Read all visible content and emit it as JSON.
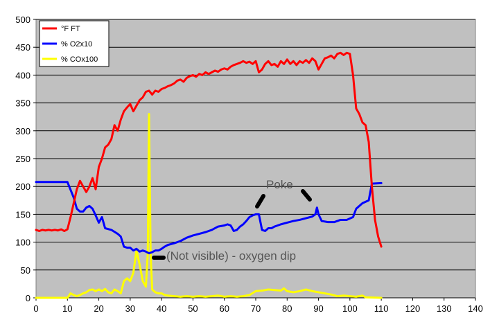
{
  "chart_data": {
    "type": "line",
    "title": "",
    "xlabel": "",
    "ylabel": "",
    "xlim": [
      0,
      140
    ],
    "ylim": [
      0,
      500
    ],
    "x_ticks": [
      0,
      10,
      20,
      30,
      40,
      50,
      60,
      70,
      80,
      90,
      100,
      110,
      120,
      130,
      140
    ],
    "y_ticks": [
      0,
      50,
      100,
      150,
      200,
      250,
      300,
      350,
      400,
      450,
      500
    ],
    "grid": "horizontal",
    "plot_background": "#c0c0c0",
    "legend_placement": "top-left",
    "series": [
      {
        "name": "°F FT",
        "color": "#ff0000",
        "points": [
          [
            0,
            122
          ],
          [
            1,
            120
          ],
          [
            2,
            122
          ],
          [
            3,
            121
          ],
          [
            4,
            122
          ],
          [
            5,
            121
          ],
          [
            6,
            122
          ],
          [
            7,
            121
          ],
          [
            8,
            123
          ],
          [
            9,
            120
          ],
          [
            10,
            123
          ],
          [
            11,
            145
          ],
          [
            12,
            170
          ],
          [
            13,
            195
          ],
          [
            14,
            210
          ],
          [
            15,
            200
          ],
          [
            16,
            190
          ],
          [
            17,
            200
          ],
          [
            18,
            215
          ],
          [
            19,
            195
          ],
          [
            20,
            235
          ],
          [
            21,
            250
          ],
          [
            22,
            270
          ],
          [
            23,
            275
          ],
          [
            24,
            285
          ],
          [
            25,
            310
          ],
          [
            26,
            300
          ],
          [
            27,
            320
          ],
          [
            28,
            335
          ],
          [
            29,
            342
          ],
          [
            30,
            348
          ],
          [
            31,
            335
          ],
          [
            32,
            345
          ],
          [
            33,
            355
          ],
          [
            34,
            360
          ],
          [
            35,
            370
          ],
          [
            36,
            372
          ],
          [
            37,
            365
          ],
          [
            38,
            372
          ],
          [
            39,
            370
          ],
          [
            40,
            375
          ],
          [
            41,
            377
          ],
          [
            42,
            380
          ],
          [
            43,
            382
          ],
          [
            44,
            385
          ],
          [
            45,
            390
          ],
          [
            46,
            392
          ],
          [
            47,
            388
          ],
          [
            48,
            395
          ],
          [
            49,
            398
          ],
          [
            50,
            400
          ],
          [
            51,
            397
          ],
          [
            52,
            402
          ],
          [
            53,
            400
          ],
          [
            54,
            405
          ],
          [
            55,
            402
          ],
          [
            56,
            405
          ],
          [
            57,
            408
          ],
          [
            58,
            406
          ],
          [
            59,
            410
          ],
          [
            60,
            412
          ],
          [
            61,
            410
          ],
          [
            62,
            415
          ],
          [
            63,
            418
          ],
          [
            64,
            420
          ],
          [
            65,
            422
          ],
          [
            66,
            425
          ],
          [
            67,
            422
          ],
          [
            68,
            424
          ],
          [
            69,
            420
          ],
          [
            70,
            425
          ],
          [
            71,
            405
          ],
          [
            72,
            410
          ],
          [
            73,
            420
          ],
          [
            74,
            425
          ],
          [
            75,
            418
          ],
          [
            76,
            420
          ],
          [
            77,
            415
          ],
          [
            78,
            425
          ],
          [
            79,
            420
          ],
          [
            80,
            428
          ],
          [
            81,
            420
          ],
          [
            82,
            425
          ],
          [
            83,
            418
          ],
          [
            84,
            425
          ],
          [
            85,
            422
          ],
          [
            86,
            427
          ],
          [
            87,
            422
          ],
          [
            88,
            430
          ],
          [
            89,
            425
          ],
          [
            90,
            410
          ],
          [
            91,
            420
          ],
          [
            92,
            430
          ],
          [
            93,
            432
          ],
          [
            94,
            435
          ],
          [
            95,
            430
          ],
          [
            96,
            438
          ],
          [
            97,
            440
          ],
          [
            98,
            436
          ],
          [
            99,
            440
          ],
          [
            100,
            438
          ],
          [
            101,
            400
          ],
          [
            102,
            340
          ],
          [
            103,
            330
          ],
          [
            104,
            315
          ],
          [
            105,
            310
          ],
          [
            106,
            280
          ],
          [
            107,
            200
          ],
          [
            108,
            140
          ],
          [
            109,
            110
          ],
          [
            110,
            92
          ]
        ]
      },
      {
        "name": "% O2x10",
        "color": "#0000ff",
        "points": [
          [
            0,
            208
          ],
          [
            5,
            208
          ],
          [
            10,
            208
          ],
          [
            12,
            180
          ],
          [
            13,
            160
          ],
          [
            14,
            155
          ],
          [
            15,
            155
          ],
          [
            16,
            162
          ],
          [
            17,
            165
          ],
          [
            18,
            160
          ],
          [
            19,
            148
          ],
          [
            20,
            135
          ],
          [
            21,
            145
          ],
          [
            22,
            125
          ],
          [
            24,
            122
          ],
          [
            26,
            115
          ],
          [
            27,
            110
          ],
          [
            28,
            92
          ],
          [
            29,
            90
          ],
          [
            30,
            90
          ],
          [
            31,
            85
          ],
          [
            32,
            88
          ],
          [
            33,
            83
          ],
          [
            34,
            85
          ],
          [
            35,
            83
          ],
          [
            36,
            80
          ],
          [
            37,
            82
          ],
          [
            38,
            85
          ],
          [
            39,
            85
          ],
          [
            40,
            88
          ],
          [
            41,
            92
          ],
          [
            42,
            95
          ],
          [
            44,
            98
          ],
          [
            46,
            102
          ],
          [
            48,
            108
          ],
          [
            50,
            112
          ],
          [
            52,
            115
          ],
          [
            54,
            118
          ],
          [
            56,
            122
          ],
          [
            58,
            128
          ],
          [
            60,
            130
          ],
          [
            61,
            132
          ],
          [
            62,
            130
          ],
          [
            63,
            120
          ],
          [
            64,
            122
          ],
          [
            65,
            128
          ],
          [
            66,
            132
          ],
          [
            67,
            138
          ],
          [
            68,
            145
          ],
          [
            69,
            148
          ],
          [
            70,
            150
          ],
          [
            71,
            150
          ],
          [
            72,
            122
          ],
          [
            73,
            120
          ],
          [
            74,
            125
          ],
          [
            75,
            125
          ],
          [
            76,
            128
          ],
          [
            77,
            130
          ],
          [
            78,
            132
          ],
          [
            80,
            135
          ],
          [
            82,
            138
          ],
          [
            84,
            140
          ],
          [
            86,
            143
          ],
          [
            88,
            146
          ],
          [
            89,
            150
          ],
          [
            89.5,
            162
          ],
          [
            90,
            150
          ],
          [
            91,
            138
          ],
          [
            93,
            136
          ],
          [
            95,
            136
          ],
          [
            97,
            140
          ],
          [
            99,
            140
          ],
          [
            101,
            145
          ],
          [
            102,
            160
          ],
          [
            104,
            170
          ],
          [
            106,
            175
          ],
          [
            107,
            205
          ],
          [
            110,
            206
          ]
        ]
      },
      {
        "name": "% COx100",
        "color": "#ffff00",
        "points": [
          [
            0,
            0
          ],
          [
            5,
            0
          ],
          [
            10,
            0
          ],
          [
            11,
            8
          ],
          [
            12,
            5
          ],
          [
            13,
            3
          ],
          [
            14,
            5
          ],
          [
            15,
            8
          ],
          [
            16,
            10
          ],
          [
            17,
            14
          ],
          [
            18,
            15
          ],
          [
            19,
            12
          ],
          [
            20,
            15
          ],
          [
            21,
            12
          ],
          [
            22,
            16
          ],
          [
            23,
            10
          ],
          [
            24,
            8
          ],
          [
            25,
            15
          ],
          [
            26,
            12
          ],
          [
            27,
            8
          ],
          [
            28,
            30
          ],
          [
            29,
            35
          ],
          [
            30,
            30
          ],
          [
            31,
            45
          ],
          [
            32,
            85
          ],
          [
            33,
            60
          ],
          [
            34,
            30
          ],
          [
            35,
            20
          ],
          [
            35.6,
            80
          ],
          [
            36,
            330
          ],
          [
            36.5,
            80
          ],
          [
            37,
            15
          ],
          [
            38,
            10
          ],
          [
            39,
            8
          ],
          [
            40,
            8
          ],
          [
            41,
            5
          ],
          [
            42,
            4
          ],
          [
            44,
            3
          ],
          [
            46,
            2
          ],
          [
            48,
            3
          ],
          [
            50,
            2
          ],
          [
            52,
            3
          ],
          [
            54,
            2
          ],
          [
            56,
            3
          ],
          [
            58,
            4
          ],
          [
            60,
            2
          ],
          [
            62,
            3
          ],
          [
            64,
            2
          ],
          [
            66,
            3
          ],
          [
            68,
            5
          ],
          [
            70,
            12
          ],
          [
            72,
            13
          ],
          [
            74,
            15
          ],
          [
            76,
            14
          ],
          [
            78,
            13
          ],
          [
            79,
            17
          ],
          [
            80,
            12
          ],
          [
            82,
            10
          ],
          [
            84,
            12
          ],
          [
            86,
            15
          ],
          [
            88,
            12
          ],
          [
            90,
            10
          ],
          [
            92,
            8
          ],
          [
            94,
            6
          ],
          [
            96,
            3
          ],
          [
            98,
            4
          ],
          [
            100,
            3
          ],
          [
            102,
            2
          ],
          [
            104,
            4
          ],
          [
            105,
            1
          ],
          [
            110,
            0
          ]
        ]
      }
    ],
    "annotations": [
      {
        "text": "Poke"
      },
      {
        "text": "(Not visible) - oxygen dip"
      }
    ]
  }
}
